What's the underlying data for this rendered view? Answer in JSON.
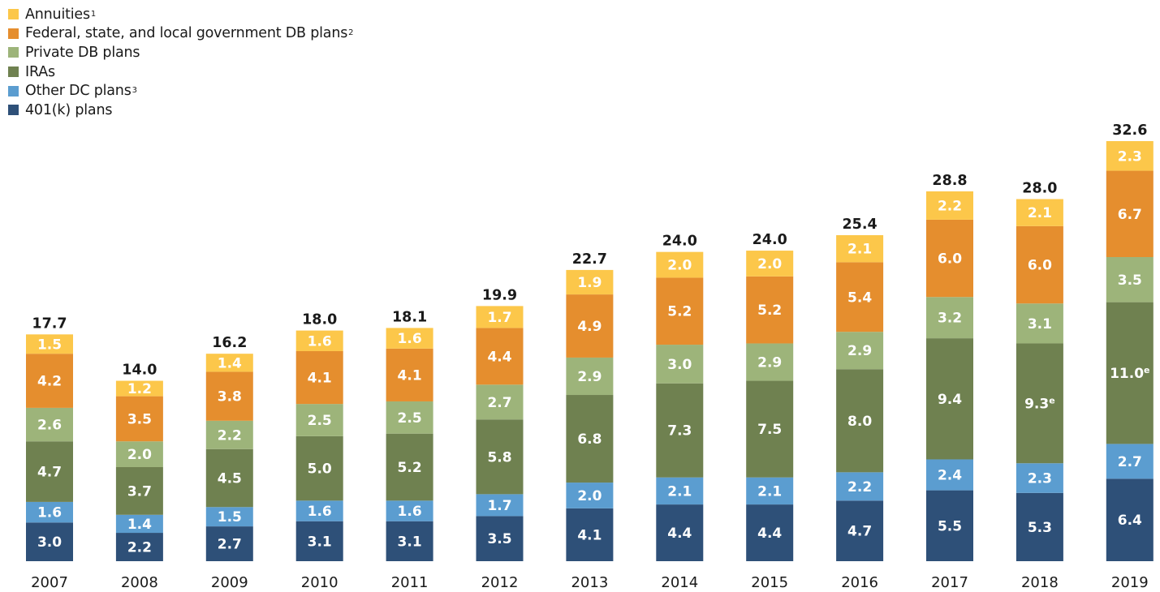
{
  "legend": [
    {
      "name": "Annuities",
      "note": "1",
      "color": "#fcc74a"
    },
    {
      "name": "Federal, state, and local government DB plans",
      "note": "2",
      "color": "#e58e2e"
    },
    {
      "name": "Private DB plans",
      "note": "",
      "color": "#9db47a"
    },
    {
      "name": "IRAs",
      "note": "",
      "color": "#6f8150"
    },
    {
      "name": "Other DC plans",
      "note": "3",
      "color": "#5b9dd0"
    },
    {
      "name": "401(k) plans",
      "note": "",
      "color": "#2e5078"
    }
  ],
  "chart_data": {
    "type": "bar",
    "stacked": true,
    "categories": [
      "2007",
      "2008",
      "2009",
      "2010",
      "2011",
      "2012",
      "2013",
      "2014",
      "2015",
      "2016",
      "2017",
      "2018",
      "2019"
    ],
    "series": [
      {
        "name": "401(k) plans",
        "color": "#2e5078",
        "values": [
          3.0,
          2.2,
          2.7,
          3.1,
          3.1,
          3.5,
          4.1,
          4.4,
          4.4,
          4.7,
          5.5,
          5.3,
          6.4
        ],
        "labels": [
          "3.0",
          "2.2",
          "2.7",
          "3.1",
          "3.1",
          "3.5",
          "4.1",
          "4.4",
          "4.4",
          "4.7",
          "5.5",
          "5.3",
          "6.4"
        ],
        "label_notes": [
          "",
          "",
          "",
          "",
          "",
          "",
          "",
          "",
          "",
          "",
          "",
          "",
          ""
        ]
      },
      {
        "name": "Other DC plans",
        "color": "#5b9dd0",
        "values": [
          1.6,
          1.4,
          1.5,
          1.6,
          1.6,
          1.7,
          2.0,
          2.1,
          2.1,
          2.2,
          2.4,
          2.3,
          2.7
        ],
        "labels": [
          "1.6",
          "1.4",
          "1.5",
          "1.6",
          "1.6",
          "1.7",
          "2.0",
          "2.1",
          "2.1",
          "2.2",
          "2.4",
          "2.3",
          "2.7"
        ],
        "label_notes": [
          "",
          "",
          "",
          "",
          "",
          "",
          "",
          "",
          "",
          "",
          "",
          "",
          ""
        ]
      },
      {
        "name": "IRAs",
        "color": "#6f8150",
        "values": [
          4.7,
          3.7,
          4.5,
          5.0,
          5.2,
          5.8,
          6.8,
          7.3,
          7.5,
          8.0,
          9.4,
          9.3,
          11.0
        ],
        "labels": [
          "4.7",
          "3.7",
          "4.5",
          "5.0",
          "5.2",
          "5.8",
          "6.8",
          "7.3",
          "7.5",
          "8.0",
          "9.4",
          "9.3",
          "11.0"
        ],
        "label_notes": [
          "",
          "",
          "",
          "",
          "",
          "",
          "",
          "",
          "",
          "",
          "",
          "e",
          "e"
        ]
      },
      {
        "name": "Private DB plans",
        "color": "#9db47a",
        "values": [
          2.6,
          2.0,
          2.2,
          2.5,
          2.5,
          2.7,
          2.9,
          3.0,
          2.9,
          2.9,
          3.2,
          3.1,
          3.5
        ],
        "labels": [
          "2.6",
          "2.0",
          "2.2",
          "2.5",
          "2.5",
          "2.7",
          "2.9",
          "3.0",
          "2.9",
          "2.9",
          "3.2",
          "3.1",
          "3.5"
        ],
        "label_notes": [
          "",
          "",
          "",
          "",
          "",
          "",
          "",
          "",
          "",
          "",
          "",
          "",
          ""
        ]
      },
      {
        "name": "Federal, state, and local government DB plans",
        "color": "#e58e2e",
        "values": [
          4.2,
          3.5,
          3.8,
          4.1,
          4.1,
          4.4,
          4.9,
          5.2,
          5.2,
          5.4,
          6.0,
          6.0,
          6.7
        ],
        "labels": [
          "4.2",
          "3.5",
          "3.8",
          "4.1",
          "4.1",
          "4.4",
          "4.9",
          "5.2",
          "5.2",
          "5.4",
          "6.0",
          "6.0",
          "6.7"
        ],
        "label_notes": [
          "",
          "",
          "",
          "",
          "",
          "",
          "",
          "",
          "",
          "",
          "",
          "",
          ""
        ]
      },
      {
        "name": "Annuities",
        "color": "#fcc74a",
        "values": [
          1.5,
          1.2,
          1.4,
          1.6,
          1.6,
          1.7,
          1.9,
          2.0,
          2.0,
          2.1,
          2.2,
          2.1,
          2.3
        ],
        "labels": [
          "1.5",
          "1.2",
          "1.4",
          "1.6",
          "1.6",
          "1.7",
          "1.9",
          "2.0",
          "2.0",
          "2.1",
          "2.2",
          "2.1",
          "2.3"
        ],
        "label_notes": [
          "",
          "",
          "",
          "",
          "",
          "",
          "",
          "",
          "",
          "",
          "",
          "",
          ""
        ]
      }
    ],
    "totals": [
      17.7,
      14.0,
      16.2,
      18.0,
      18.1,
      19.9,
      22.7,
      24.0,
      24.0,
      25.4,
      28.8,
      28.0,
      32.6
    ],
    "total_labels": [
      "17.7",
      "14.0",
      "16.2",
      "18.0",
      "18.1",
      "19.9",
      "22.7",
      "24.0",
      "24.0",
      "25.4",
      "28.8",
      "28.0",
      "32.6"
    ],
    "ylim": [
      0,
      32.6
    ],
    "grid": false,
    "legend_position": "top-left"
  }
}
